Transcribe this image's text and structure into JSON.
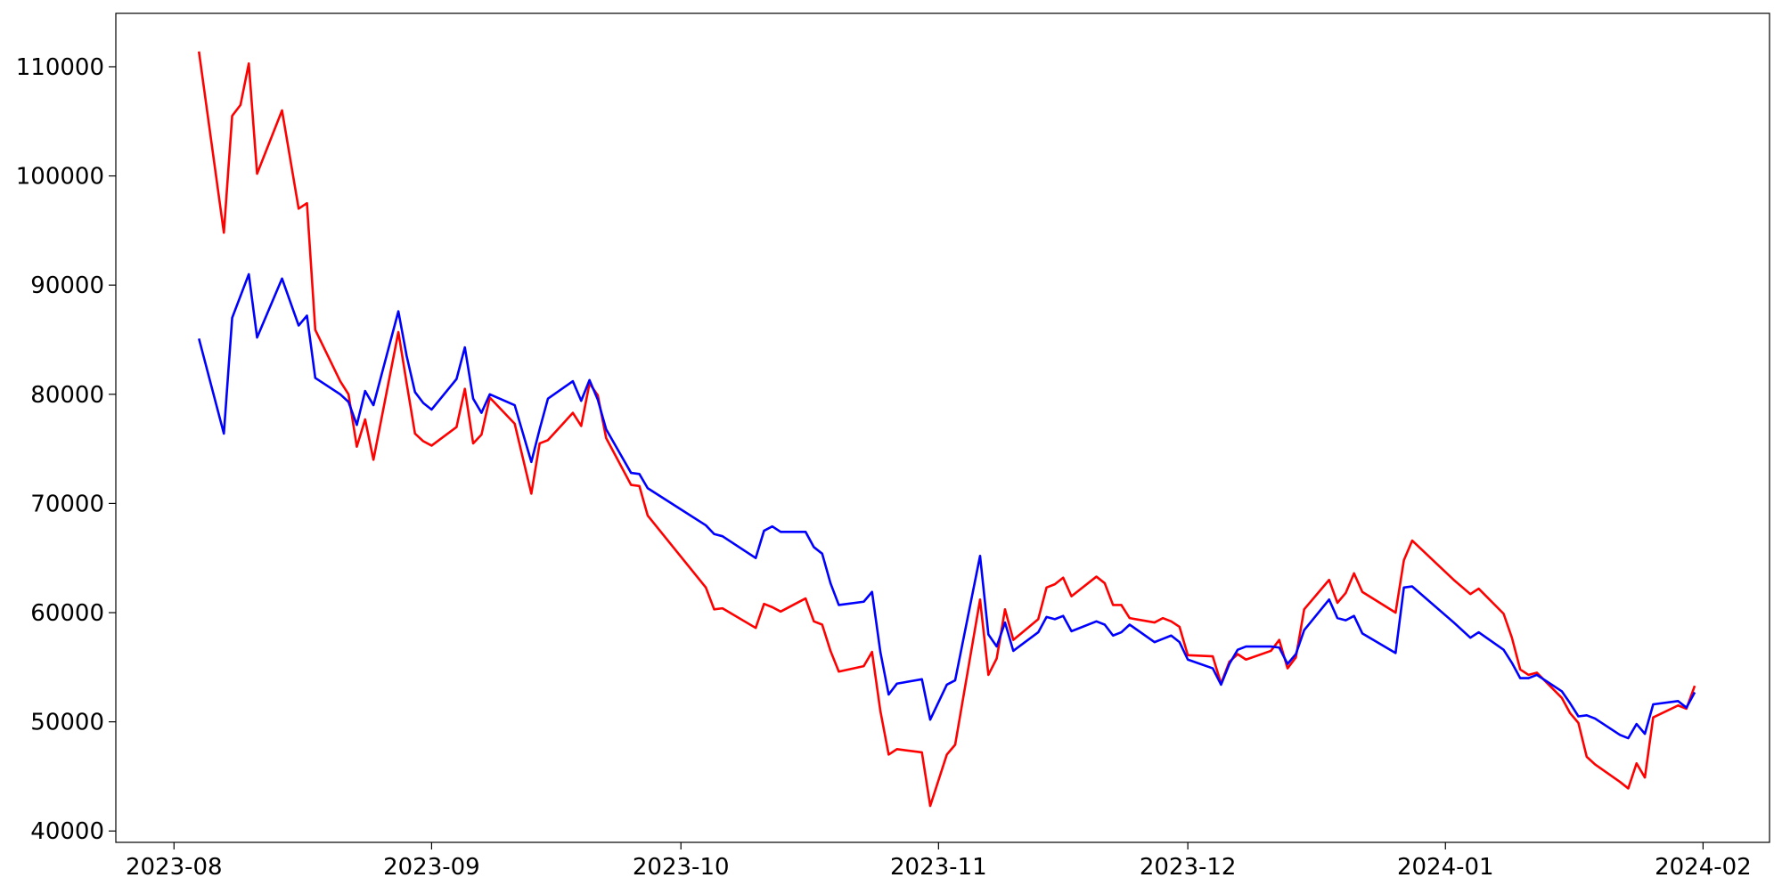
{
  "chart_data": {
    "type": "line",
    "x": [
      "2023-08-04",
      "2023-08-07",
      "2023-08-08",
      "2023-08-09",
      "2023-08-10",
      "2023-08-11",
      "2023-08-14",
      "2023-08-16",
      "2023-08-17",
      "2023-08-18",
      "2023-08-21",
      "2023-08-22",
      "2023-08-23",
      "2023-08-24",
      "2023-08-25",
      "2023-08-28",
      "2023-08-29",
      "2023-08-30",
      "2023-08-31",
      "2023-09-01",
      "2023-09-04",
      "2023-09-05",
      "2023-09-06",
      "2023-09-07",
      "2023-09-08",
      "2023-09-11",
      "2023-09-13",
      "2023-09-14",
      "2023-09-15",
      "2023-09-18",
      "2023-09-19",
      "2023-09-20",
      "2023-09-21",
      "2023-09-22",
      "2023-09-25",
      "2023-09-26",
      "2023-09-27",
      "2023-10-04",
      "2023-10-05",
      "2023-10-06",
      "2023-10-10",
      "2023-10-11",
      "2023-10-12",
      "2023-10-13",
      "2023-10-16",
      "2023-10-17",
      "2023-10-18",
      "2023-10-19",
      "2023-10-20",
      "2023-10-23",
      "2023-10-24",
      "2023-10-25",
      "2023-10-26",
      "2023-10-27",
      "2023-10-30",
      "2023-10-31",
      "2023-11-02",
      "2023-11-03",
      "2023-11-06",
      "2023-11-07",
      "2023-11-08",
      "2023-11-09",
      "2023-11-10",
      "2023-11-13",
      "2023-11-14",
      "2023-11-15",
      "2023-11-16",
      "2023-11-17",
      "2023-11-20",
      "2023-11-21",
      "2023-11-22",
      "2023-11-23",
      "2023-11-24",
      "2023-11-27",
      "2023-11-28",
      "2023-11-29",
      "2023-11-30",
      "2023-12-01",
      "2023-12-04",
      "2023-12-05",
      "2023-12-06",
      "2023-12-07",
      "2023-12-08",
      "2023-12-11",
      "2023-12-12",
      "2023-12-13",
      "2023-12-14",
      "2023-12-15",
      "2023-12-18",
      "2023-12-19",
      "2023-12-20",
      "2023-12-21",
      "2023-12-22",
      "2023-12-26",
      "2023-12-27",
      "2023-12-28",
      "2024-01-02",
      "2024-01-04",
      "2024-01-05",
      "2024-01-08",
      "2024-01-09",
      "2024-01-10",
      "2024-01-11",
      "2024-01-12",
      "2024-01-15",
      "2024-01-16",
      "2024-01-17",
      "2024-01-18",
      "2024-01-19",
      "2024-01-22",
      "2024-01-23",
      "2024-01-24",
      "2024-01-25",
      "2024-01-26",
      "2024-01-29",
      "2024-01-30",
      "2024-01-31"
    ],
    "series": [
      {
        "color": "#ff0000",
        "values": [
          111400,
          94800,
          105500,
          106500,
          110300,
          100200,
          106000,
          97000,
          97500,
          85900,
          81200,
          80000,
          75200,
          77700,
          74000,
          85700,
          81000,
          76400,
          75700,
          75300,
          77000,
          80500,
          75500,
          76300,
          79700,
          77300,
          70900,
          75500,
          75800,
          78300,
          77100,
          81000,
          79900,
          76000,
          71700,
          71600,
          68900,
          62300,
          60300,
          60400,
          58600,
          60800,
          60500,
          60100,
          61300,
          59200,
          58900,
          56500,
          54600,
          55100,
          56400,
          51000,
          47000,
          47500,
          47200,
          42300,
          47000,
          47900,
          61200,
          54300,
          55800,
          60300,
          57500,
          59400,
          62300,
          62600,
          63200,
          61500,
          63300,
          62700,
          60700,
          60700,
          59500,
          59100,
          59500,
          59200,
          58700,
          56100,
          56000,
          53500,
          55500,
          56200,
          55700,
          56500,
          57500,
          54900,
          55900,
          60300,
          63000,
          60900,
          61800,
          63600,
          61900,
          60000,
          64800,
          66600,
          63000,
          61700,
          62200,
          59900,
          57700,
          54800,
          54300,
          54500,
          52200,
          50800,
          49900,
          46800,
          46100,
          44500,
          43900,
          46200,
          44900,
          50400,
          51500,
          51200,
          53300
        ]
      },
      {
        "color": "#0000ff",
        "values": [
          85100,
          76400,
          87000,
          89000,
          91000,
          85200,
          90600,
          86300,
          87200,
          81500,
          80000,
          79300,
          77200,
          80300,
          79000,
          87600,
          83500,
          80200,
          79200,
          78600,
          81400,
          84300,
          79600,
          78300,
          80000,
          79000,
          73800,
          76800,
          79600,
          81200,
          79400,
          81300,
          79500,
          76800,
          72800,
          72700,
          71400,
          68000,
          67200,
          67000,
          65000,
          67500,
          67900,
          67400,
          67400,
          66000,
          65400,
          62700,
          60700,
          61000,
          61900,
          56400,
          52500,
          53500,
          53900,
          50200,
          53400,
          53800,
          65200,
          58000,
          56900,
          59100,
          56500,
          58200,
          59600,
          59400,
          59700,
          58300,
          59200,
          58900,
          57900,
          58200,
          58900,
          57300,
          57600,
          57900,
          57300,
          55700,
          54900,
          53400,
          55300,
          56600,
          56900,
          56900,
          56800,
          55300,
          56200,
          58400,
          61200,
          59500,
          59300,
          59700,
          58100,
          56300,
          62300,
          62400,
          59100,
          57700,
          58200,
          56600,
          55400,
          54000,
          54000,
          54300,
          52800,
          51700,
          50500,
          50600,
          50300,
          48800,
          48500,
          49800,
          48900,
          51600,
          51900,
          51300,
          52700
        ]
      }
    ],
    "xlim": [
      "2023-07-25",
      "2024-02-09"
    ],
    "xticks": [
      "2023-08",
      "2023-09",
      "2023-10",
      "2023-11",
      "2023-12",
      "2024-01",
      "2024-02"
    ],
    "ylim": [
      38960,
      114890
    ],
    "yticks": [
      40000,
      50000,
      60000,
      70000,
      80000,
      90000,
      100000,
      110000
    ],
    "grid": false
  }
}
